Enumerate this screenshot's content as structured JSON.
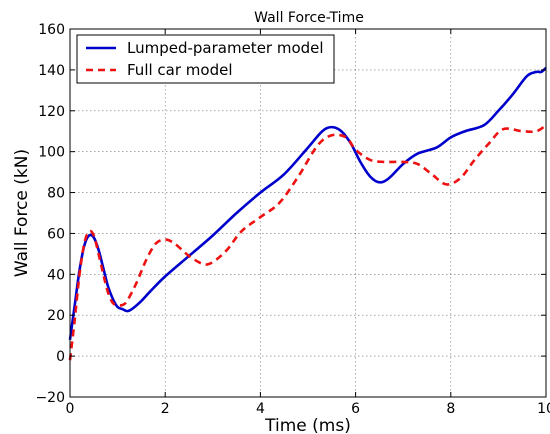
{
  "chart_data": {
    "type": "line",
    "title": "Wall Force-Time",
    "xlabel": "Time (ms)",
    "ylabel": "Wall Force (kN)",
    "xlim": [
      0,
      10
    ],
    "ylim": [
      -20,
      160
    ],
    "xticks": [
      0,
      2,
      4,
      6,
      8,
      10
    ],
    "yticks": [
      -20,
      0,
      20,
      40,
      60,
      80,
      100,
      120,
      140,
      160
    ],
    "grid": true,
    "legend_position": "top-left",
    "series": [
      {
        "name": "Lumped-parameter model",
        "color": "#0000cc",
        "style": "solid",
        "x": [
          0,
          0.1,
          0.2,
          0.3,
          0.4,
          0.5,
          0.6,
          0.7,
          0.8,
          0.9,
          1.0,
          1.1,
          1.2,
          1.3,
          1.5,
          1.7,
          2.0,
          2.5,
          3.0,
          3.5,
          4.0,
          4.5,
          5.0,
          5.3,
          5.5,
          5.7,
          5.9,
          6.1,
          6.3,
          6.5,
          6.7,
          7.0,
          7.3,
          7.7,
          8.0,
          8.3,
          8.7,
          9.0,
          9.3,
          9.6,
          9.8,
          9.9,
          10.0
        ],
        "y": [
          8,
          25,
          42,
          54,
          59,
          58,
          52,
          43,
          34,
          28,
          24,
          23,
          22,
          23,
          27,
          32,
          39,
          49,
          59,
          70,
          80,
          89,
          102,
          110,
          112,
          110,
          104,
          95,
          88,
          85,
          87,
          94,
          99,
          102,
          107,
          110,
          113,
          120,
          128,
          137,
          139,
          139,
          141
        ]
      },
      {
        "name": "Full car model",
        "color": "#ee1111",
        "style": "dashed",
        "x": [
          0,
          0.1,
          0.2,
          0.3,
          0.4,
          0.5,
          0.6,
          0.7,
          0.8,
          0.9,
          1.0,
          1.1,
          1.2,
          1.4,
          1.6,
          1.8,
          2.0,
          2.2,
          2.5,
          2.8,
          3.0,
          3.3,
          3.6,
          4.0,
          4.4,
          4.8,
          5.2,
          5.5,
          5.8,
          6.0,
          6.3,
          6.6,
          7.0,
          7.3,
          7.6,
          7.9,
          8.2,
          8.5,
          8.8,
          9.1,
          9.5,
          9.8,
          10.0
        ],
        "y": [
          -2,
          18,
          40,
          55,
          61,
          59,
          50,
          40,
          31,
          26,
          25,
          25,
          27,
          36,
          47,
          55,
          57,
          55,
          49,
          45,
          46,
          52,
          61,
          68,
          75,
          88,
          103,
          108,
          107,
          101,
          96,
          95,
          95,
          94,
          89,
          84,
          87,
          96,
          104,
          111,
          110,
          110,
          113
        ]
      }
    ]
  }
}
